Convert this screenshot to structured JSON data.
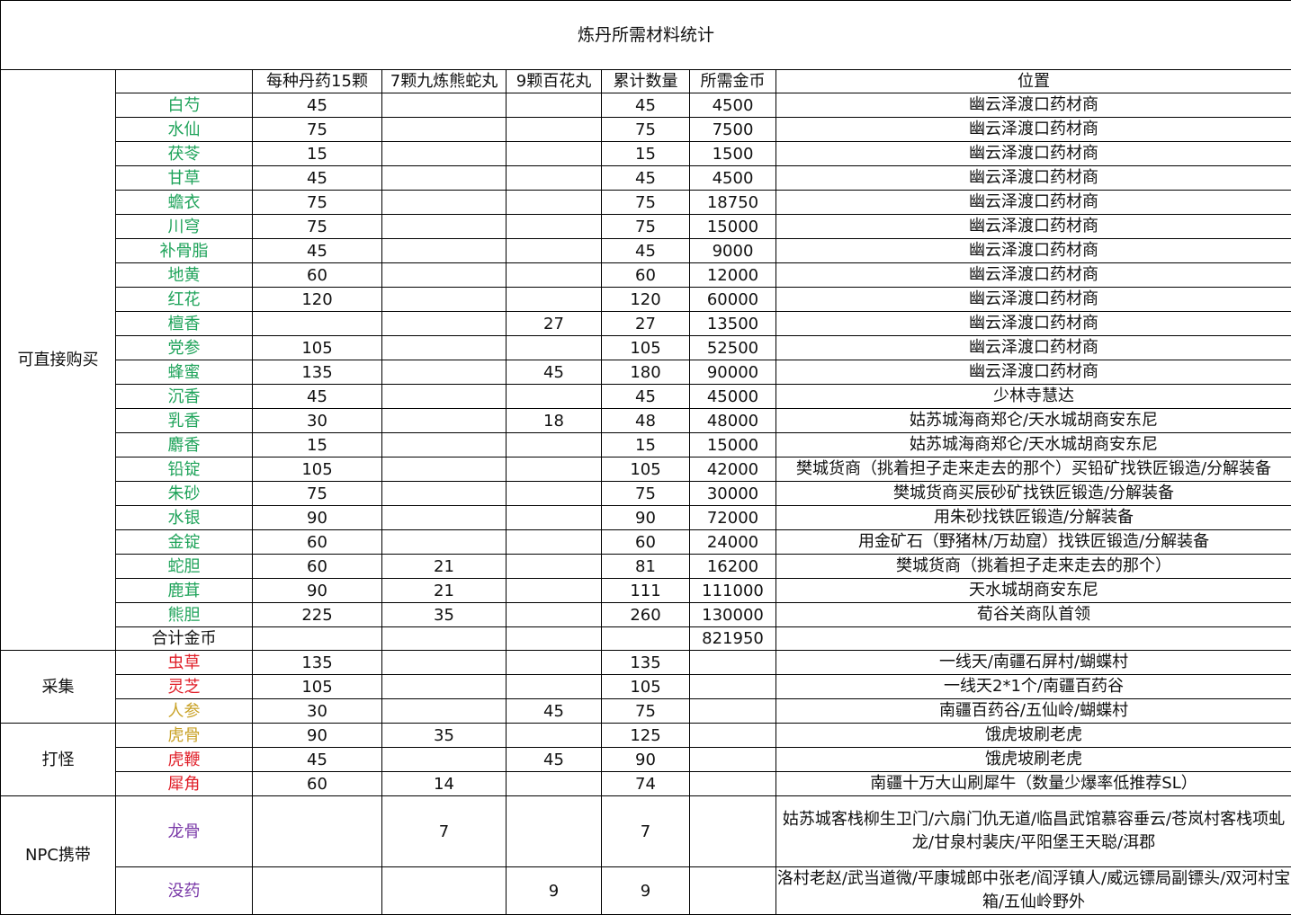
{
  "title": "炼丹所需材料统计",
  "headers": [
    "",
    "",
    "每种丹药15颗",
    "7颗九炼熊蛇丸",
    "9颗百花丸",
    "累计数量",
    "所需金币",
    "位置"
  ],
  "colors": {
    "green": "#1fa35a",
    "red": "#e0202a",
    "gold": "#c9a227",
    "purple": "#7a3aa8"
  },
  "groups": [
    {
      "category": "可直接购买",
      "rows": [
        {
          "name": "白芍",
          "color": "green",
          "c1": "45",
          "c2": "",
          "c3": "",
          "total": "45",
          "gold": "4500",
          "loc": "幽云泽渡口药材商"
        },
        {
          "name": "水仙",
          "color": "green",
          "c1": "75",
          "c2": "",
          "c3": "",
          "total": "75",
          "gold": "7500",
          "loc": "幽云泽渡口药材商"
        },
        {
          "name": "茯苓",
          "color": "green",
          "c1": "15",
          "c2": "",
          "c3": "",
          "total": "15",
          "gold": "1500",
          "loc": "幽云泽渡口药材商"
        },
        {
          "name": "甘草",
          "color": "green",
          "c1": "45",
          "c2": "",
          "c3": "",
          "total": "45",
          "gold": "4500",
          "loc": "幽云泽渡口药材商"
        },
        {
          "name": "蟾衣",
          "color": "green",
          "c1": "75",
          "c2": "",
          "c3": "",
          "total": "75",
          "gold": "18750",
          "loc": "幽云泽渡口药材商"
        },
        {
          "name": "川穹",
          "color": "green",
          "c1": "75",
          "c2": "",
          "c3": "",
          "total": "75",
          "gold": "15000",
          "loc": "幽云泽渡口药材商"
        },
        {
          "name": "补骨脂",
          "color": "green",
          "c1": "45",
          "c2": "",
          "c3": "",
          "total": "45",
          "gold": "9000",
          "loc": "幽云泽渡口药材商"
        },
        {
          "name": "地黄",
          "color": "green",
          "c1": "60",
          "c2": "",
          "c3": "",
          "total": "60",
          "gold": "12000",
          "loc": "幽云泽渡口药材商"
        },
        {
          "name": "红花",
          "color": "green",
          "c1": "120",
          "c2": "",
          "c3": "",
          "total": "120",
          "gold": "60000",
          "loc": "幽云泽渡口药材商"
        },
        {
          "name": "檀香",
          "color": "green",
          "c1": "",
          "c2": "",
          "c3": "27",
          "total": "27",
          "gold": "13500",
          "loc": "幽云泽渡口药材商"
        },
        {
          "name": "党参",
          "color": "green",
          "c1": "105",
          "c2": "",
          "c3": "",
          "total": "105",
          "gold": "52500",
          "loc": "幽云泽渡口药材商"
        },
        {
          "name": "蜂蜜",
          "color": "green",
          "c1": "135",
          "c2": "",
          "c3": "45",
          "total": "180",
          "gold": "90000",
          "loc": "幽云泽渡口药材商"
        },
        {
          "name": "沉香",
          "color": "green",
          "c1": "45",
          "c2": "",
          "c3": "",
          "total": "45",
          "gold": "45000",
          "loc": "少林寺慧达"
        },
        {
          "name": "乳香",
          "color": "green",
          "c1": "30",
          "c2": "",
          "c3": "18",
          "total": "48",
          "gold": "48000",
          "loc": "姑苏城海商郑仑/天水城胡商安东尼"
        },
        {
          "name": "麝香",
          "color": "green",
          "c1": "15",
          "c2": "",
          "c3": "",
          "total": "15",
          "gold": "15000",
          "loc": "姑苏城海商郑仑/天水城胡商安东尼"
        },
        {
          "name": "铅锭",
          "color": "green",
          "c1": "105",
          "c2": "",
          "c3": "",
          "total": "105",
          "gold": "42000",
          "loc": "樊城货商（挑着担子走来走去的那个）买铅矿找铁匠锻造/分解装备"
        },
        {
          "name": "朱砂",
          "color": "green",
          "c1": "75",
          "c2": "",
          "c3": "",
          "total": "75",
          "gold": "30000",
          "loc": "樊城货商买辰砂矿找铁匠锻造/分解装备"
        },
        {
          "name": "水银",
          "color": "green",
          "c1": "90",
          "c2": "",
          "c3": "",
          "total": "90",
          "gold": "72000",
          "loc": "用朱砂找铁匠锻造/分解装备"
        },
        {
          "name": "金锭",
          "color": "green",
          "c1": "60",
          "c2": "",
          "c3": "",
          "total": "60",
          "gold": "24000",
          "loc": "用金矿石（野猪林/万劫窟）找铁匠锻造/分解装备"
        },
        {
          "name": "蛇胆",
          "color": "green",
          "c1": "60",
          "c2": "21",
          "c3": "",
          "total": "81",
          "gold": "16200",
          "loc": "樊城货商（挑着担子走来走去的那个）"
        },
        {
          "name": "鹿茸",
          "color": "green",
          "c1": "90",
          "c2": "21",
          "c3": "",
          "total": "111",
          "gold": "111000",
          "loc": "天水城胡商安东尼"
        },
        {
          "name": "熊胆",
          "color": "green",
          "c1": "225",
          "c2": "35",
          "c3": "",
          "total": "260",
          "gold": "130000",
          "loc": "荀谷关商队首领"
        },
        {
          "name": "合计金币",
          "color": "",
          "c1": "",
          "c2": "",
          "c3": "",
          "total": "",
          "gold": "821950",
          "loc": ""
        }
      ]
    },
    {
      "category": "采集",
      "rows": [
        {
          "name": "虫草",
          "color": "red",
          "c1": "135",
          "c2": "",
          "c3": "",
          "total": "135",
          "gold": "",
          "loc": "一线天/南疆石屏村/蝴蝶村"
        },
        {
          "name": "灵芝",
          "color": "red",
          "c1": "105",
          "c2": "",
          "c3": "",
          "total": "105",
          "gold": "",
          "loc": "一线天2*1个/南疆百药谷"
        },
        {
          "name": "人参",
          "color": "gold",
          "c1": "30",
          "c2": "",
          "c3": "45",
          "total": "75",
          "gold": "",
          "loc": "南疆百药谷/五仙岭/蝴蝶村"
        }
      ]
    },
    {
      "category": "打怪",
      "rows": [
        {
          "name": "虎骨",
          "color": "gold",
          "c1": "90",
          "c2": "35",
          "c3": "",
          "total": "125",
          "gold": "",
          "loc": "饿虎坡刷老虎"
        },
        {
          "name": "虎鞭",
          "color": "red",
          "c1": "45",
          "c2": "",
          "c3": "45",
          "total": "90",
          "gold": "",
          "loc": "饿虎坡刷老虎"
        },
        {
          "name": "犀角",
          "color": "red",
          "c1": "60",
          "c2": "14",
          "c3": "",
          "total": "74",
          "gold": "",
          "loc": "南疆十万大山刷犀牛（数量少爆率低推荐SL）"
        }
      ]
    },
    {
      "category": "NPC携带",
      "rows": [
        {
          "name": "龙骨",
          "color": "purple",
          "c1": "",
          "c2": "7",
          "c3": "",
          "total": "7",
          "gold": "",
          "loc": "姑苏城客栈柳生卫门/六扇门仇无道/临昌武馆慕容垂云/苍岚村客栈项虬龙/甘泉村裴庆/平阳堡王天聪/洱郡"
        },
        {
          "name": "没药",
          "color": "purple",
          "c1": "",
          "c2": "",
          "c3": "9",
          "total": "9",
          "gold": "",
          "loc": "洛村老赵/武当道微/平康城郎中张老/阎浮镇人/威远镖局副镖头/双河村宝箱/五仙岭野外"
        }
      ]
    }
  ]
}
